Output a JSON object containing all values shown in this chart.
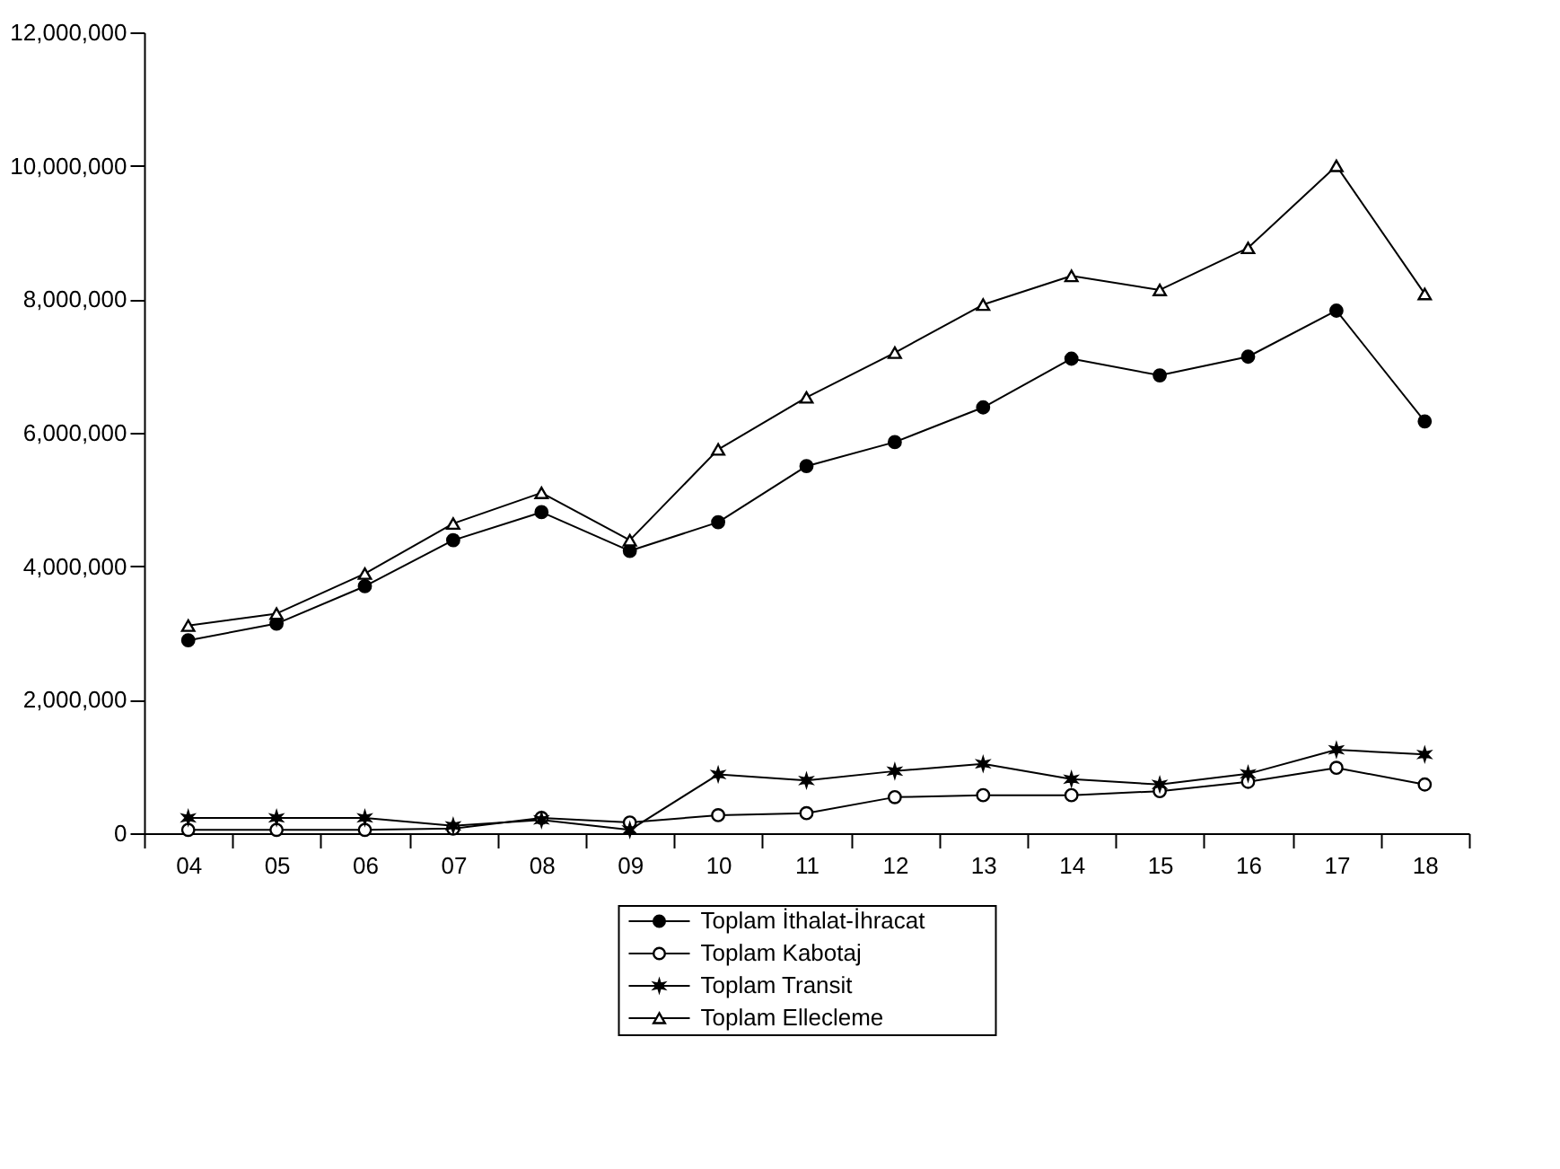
{
  "chart_data": {
    "type": "line",
    "categories": [
      "04",
      "05",
      "06",
      "07",
      "08",
      "09",
      "10",
      "11",
      "12",
      "13",
      "14",
      "15",
      "16",
      "17",
      "18"
    ],
    "series": [
      {
        "name": "Toplam İthalat-İhracat",
        "color": "#000000",
        "marker": "circle",
        "values": [
          2890000,
          3140000,
          3700000,
          4390000,
          4810000,
          4230000,
          4660000,
          5500000,
          5860000,
          6380000,
          7110000,
          6860000,
          7140000,
          7830000,
          6170000
        ]
      },
      {
        "name": "Toplam Kabotaj",
        "color": "#000000",
        "marker": "circle",
        "values": [
          50000,
          50000,
          50000,
          70000,
          230000,
          160000,
          270000,
          300000,
          540000,
          570000,
          570000,
          630000,
          770000,
          980000,
          730000
        ]
      },
      {
        "name": "Toplam Transit",
        "color": "#000000",
        "marker": "cross",
        "values": [
          230000,
          230000,
          230000,
          110000,
          200000,
          50000,
          880000,
          790000,
          930000,
          1040000,
          810000,
          730000,
          890000,
          1250000,
          1180000
        ]
      },
      {
        "name": "Toplam Ellecleme",
        "color": "#000000",
        "marker": "triangle",
        "values": [
          3110000,
          3290000,
          3890000,
          4640000,
          5100000,
          4390000,
          5750000,
          6530000,
          7200000,
          7920000,
          8350000,
          8140000,
          8770000,
          10000000,
          8080000
        ]
      }
    ],
    "ylim": [
      0,
      12000000
    ],
    "yticks": [
      0,
      {
        "value": 2000000,
        "label": "2,000,000"
      },
      {
        "value": 4000000,
        "label": "4,000,000"
      },
      {
        "value": 6000000,
        "label": "6,000,000"
      },
      {
        "value": 8000000,
        "label": "8,000,000"
      },
      {
        "value": 10000000,
        "label": "10,000,000"
      },
      {
        "value": 12000000,
        "label": "12,000,000"
      }
    ],
    "grid": false,
    "legend": "bottom",
    "line_style": "solid"
  }
}
